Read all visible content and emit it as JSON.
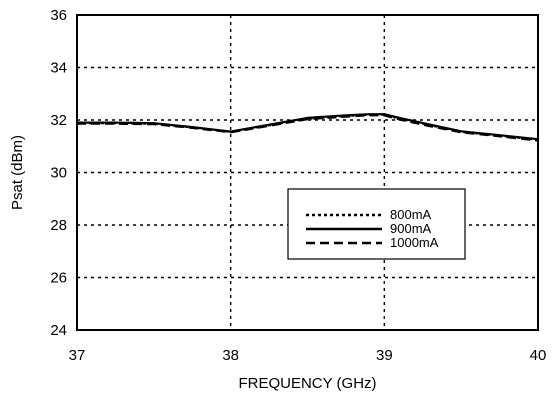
{
  "chart_data": {
    "type": "line",
    "xlabel": "FREQUENCY (GHz)",
    "ylabel": "Psat (dBm)",
    "xlim": [
      37,
      40
    ],
    "ylim": [
      24,
      36
    ],
    "xticks": [
      37,
      38,
      39,
      40
    ],
    "yticks": [
      24,
      26,
      28,
      30,
      32,
      34,
      36
    ],
    "xtick_labels": [
      "37",
      "38",
      "39",
      "40"
    ],
    "ytick_labels": [
      "24",
      "26",
      "28",
      "30",
      "32",
      "34",
      "36"
    ],
    "grid": "dotted",
    "legend_position": "center-right",
    "series": [
      {
        "name": "800mA",
        "style": "dotted",
        "x": [
          37.0,
          37.25,
          37.5,
          37.75,
          38.0,
          38.25,
          38.5,
          38.75,
          38.9,
          39.0,
          39.1,
          39.3,
          39.5,
          39.75,
          40.0
        ],
        "y": [
          31.88,
          31.88,
          31.86,
          31.72,
          31.55,
          31.8,
          32.05,
          32.15,
          32.2,
          32.2,
          32.05,
          31.8,
          31.55,
          31.4,
          31.25
        ]
      },
      {
        "name": "900mA",
        "style": "solid",
        "x": [
          37.0,
          37.25,
          37.5,
          37.75,
          38.0,
          38.25,
          38.5,
          38.75,
          38.9,
          39.0,
          39.1,
          39.3,
          39.5,
          39.75,
          40.0
        ],
        "y": [
          31.9,
          31.9,
          31.88,
          31.73,
          31.56,
          31.82,
          32.08,
          32.18,
          32.22,
          32.22,
          32.08,
          31.82,
          31.57,
          31.42,
          31.27
        ]
      },
      {
        "name": "1000mA",
        "style": "dashed",
        "x": [
          37.0,
          37.25,
          37.5,
          37.75,
          38.0,
          38.25,
          38.5,
          38.75,
          38.9,
          39.0,
          39.1,
          39.3,
          39.5,
          39.75,
          40.0
        ],
        "y": [
          31.86,
          31.86,
          31.84,
          31.7,
          31.53,
          31.78,
          32.03,
          32.13,
          32.18,
          32.18,
          32.02,
          31.76,
          31.53,
          31.38,
          31.22
        ]
      }
    ]
  }
}
